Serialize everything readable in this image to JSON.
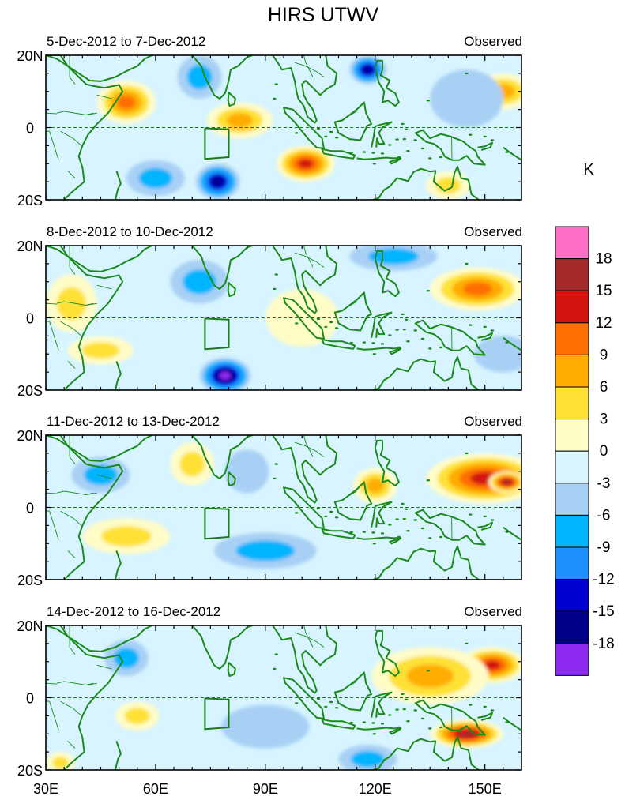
{
  "title": "HIRS UTWV",
  "colorbar_unit": "K",
  "colorbar_levels": [
    "18",
    "15",
    "12",
    "9",
    "6",
    "3",
    "0",
    "-3",
    "-6",
    "-9",
    "-12",
    "-15",
    "-18"
  ],
  "colorbar_colors": [
    "#ff6ec7",
    "#a52a2a",
    "#d2140f",
    "#ff6e00",
    "#ffad00",
    "#ffe135",
    "#fffcc8",
    "#d7f4ff",
    "#a8d0f5",
    "#00b4ff",
    "#1e90ff",
    "#0000d2",
    "#00008a",
    "#8e2bf0"
  ],
  "chart_data": {
    "type": "heatmap",
    "variable": "UTWV anomaly",
    "unit": "K",
    "x_range": [
      30,
      160
    ],
    "y_range": [
      -20,
      20
    ],
    "x_tick_values": [
      30,
      60,
      90,
      120,
      150
    ],
    "x_tick_labels": [
      "30E",
      "60E",
      "90E",
      "120E",
      "150E"
    ],
    "y_tick_values": [
      20,
      0,
      -20
    ],
    "y_tick_labels": [
      "20N",
      "0",
      "20S"
    ],
    "levels": [
      -18,
      -15,
      -12,
      -9,
      -6,
      -3,
      0,
      3,
      6,
      9,
      12,
      15,
      18
    ],
    "panels": [
      {
        "period": "5-Dec-2012 to 7-Dec-2012",
        "label": "Observed",
        "features": [
          {
            "lon": 52,
            "lat": 7,
            "value": 11,
            "rx": 8,
            "ry": 6
          },
          {
            "lon": 72,
            "lat": 14,
            "value": -7,
            "rx": 6,
            "ry": 6
          },
          {
            "lon": 83,
            "lat": 2,
            "value": 8,
            "rx": 9,
            "ry": 5
          },
          {
            "lon": 101,
            "lat": -10,
            "value": 14,
            "rx": 8,
            "ry": 5
          },
          {
            "lon": 77,
            "lat": -15,
            "value": -16,
            "rx": 6,
            "ry": 5
          },
          {
            "lon": 60,
            "lat": -14,
            "value": -8,
            "rx": 8,
            "ry": 5
          },
          {
            "lon": 118,
            "lat": 16,
            "value": -15,
            "rx": 5,
            "ry": 4
          },
          {
            "lon": 155,
            "lat": 10,
            "value": 9,
            "rx": 8,
            "ry": 5
          },
          {
            "lon": 145,
            "lat": 8,
            "value": -5,
            "rx": 10,
            "ry": 8
          },
          {
            "lon": 140,
            "lat": -16,
            "value": 6,
            "rx": 6,
            "ry": 4
          }
        ]
      },
      {
        "period": "8-Dec-2012 to 10-Dec-2012",
        "label": "Observed",
        "features": [
          {
            "lon": 79,
            "lat": -16,
            "value": -18,
            "rx": 7,
            "ry": 5
          },
          {
            "lon": 72,
            "lat": 10,
            "value": -7,
            "rx": 8,
            "ry": 6
          },
          {
            "lon": 148,
            "lat": 8,
            "value": 10,
            "rx": 13,
            "ry": 6
          },
          {
            "lon": 37,
            "lat": 4,
            "value": 5,
            "rx": 7,
            "ry": 8
          },
          {
            "lon": 45,
            "lat": -9,
            "value": 6,
            "rx": 9,
            "ry": 4
          },
          {
            "lon": 125,
            "lat": 17,
            "value": -7,
            "rx": 12,
            "ry": 4
          },
          {
            "lon": 155,
            "lat": -10,
            "value": -5,
            "rx": 8,
            "ry": 5
          },
          {
            "lon": 100,
            "lat": 0,
            "value": 2,
            "rx": 10,
            "ry": 8
          }
        ]
      },
      {
        "period": "11-Dec-2012 to 13-Dec-2012",
        "label": "Observed",
        "features": [
          {
            "lon": 150,
            "lat": 8,
            "value": 13,
            "rx": 16,
            "ry": 7
          },
          {
            "lon": 156,
            "lat": 7,
            "value": 16,
            "rx": 5,
            "ry": 3
          },
          {
            "lon": 120,
            "lat": 6,
            "value": 7,
            "rx": 6,
            "ry": 5
          },
          {
            "lon": 70,
            "lat": 12,
            "value": 5,
            "rx": 6,
            "ry": 6
          },
          {
            "lon": 45,
            "lat": 9,
            "value": -7,
            "rx": 8,
            "ry": 5
          },
          {
            "lon": 52,
            "lat": -8,
            "value": 6,
            "rx": 12,
            "ry": 5
          },
          {
            "lon": 90,
            "lat": -12,
            "value": -6,
            "rx": 14,
            "ry": 5
          },
          {
            "lon": 85,
            "lat": 10,
            "value": -5,
            "rx": 6,
            "ry": 6
          }
        ]
      },
      {
        "period": "14-Dec-2012 to 16-Dec-2012",
        "label": "Observed",
        "features": [
          {
            "lon": 152,
            "lat": 9,
            "value": 15,
            "rx": 9,
            "ry": 5
          },
          {
            "lon": 145,
            "lat": -10,
            "value": 16,
            "rx": 10,
            "ry": 4
          },
          {
            "lon": 135,
            "lat": 6,
            "value": 9,
            "rx": 16,
            "ry": 8
          },
          {
            "lon": 52,
            "lat": 11,
            "value": -7,
            "rx": 6,
            "ry": 5
          },
          {
            "lon": 55,
            "lat": -5,
            "value": 6,
            "rx": 6,
            "ry": 4
          },
          {
            "lon": 118,
            "lat": -17,
            "value": -7,
            "rx": 8,
            "ry": 4
          },
          {
            "lon": 90,
            "lat": -8,
            "value": -4,
            "rx": 12,
            "ry": 6
          },
          {
            "lon": 34,
            "lat": -18,
            "value": 6,
            "rx": 4,
            "ry": 3
          }
        ]
      }
    ]
  }
}
